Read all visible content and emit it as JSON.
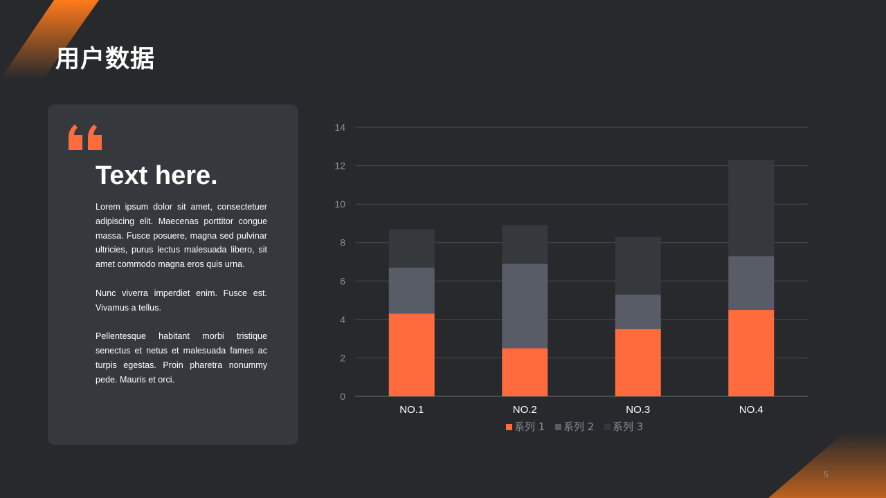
{
  "slide": {
    "title": "用户数据",
    "page_number": "5"
  },
  "card": {
    "heading": "Text here.",
    "paragraphs": [
      "Lorem ipsum dolor sit amet, consectetuer adipiscing elit. Maecenas porttitor congue massa. Fusce posuere, magna sed pulvinar ultricies, purus lectus malesuada libero, sit amet commodo magna eros quis urna.",
      "Nunc viverra imperdiet enim. Fusce est. Vivamus a tellus.",
      "Pellentesque habitant morbi tristique senectus et netus et malesuada fames ac turpis egestas. Proin pharetra nonummy pede. Mauris et orci."
    ]
  },
  "colors": {
    "background": "#27292c",
    "card": "#35383d",
    "accent": "#ff6b3d",
    "series_2": "#575c66",
    "series_3": "#35383d"
  },
  "chart_data": {
    "type": "bar",
    "stacked": true,
    "categories": [
      "NO.1",
      "NO.2",
      "NO.3",
      "NO.4"
    ],
    "series": [
      {
        "name": "系列 1",
        "values": [
          4.3,
          2.5,
          3.5,
          4.5
        ],
        "color": "#ff6b3d"
      },
      {
        "name": "系列 2",
        "values": [
          2.4,
          4.4,
          1.8,
          2.8
        ],
        "color": "#575c66"
      },
      {
        "name": "系列 3",
        "values": [
          2.0,
          2.0,
          3.0,
          5.0
        ],
        "color": "#35383d"
      }
    ],
    "ylim": [
      0,
      14
    ],
    "yticks": [
      0,
      2,
      4,
      6,
      8,
      10,
      12,
      14
    ],
    "grid": true,
    "legend": "bottom"
  }
}
